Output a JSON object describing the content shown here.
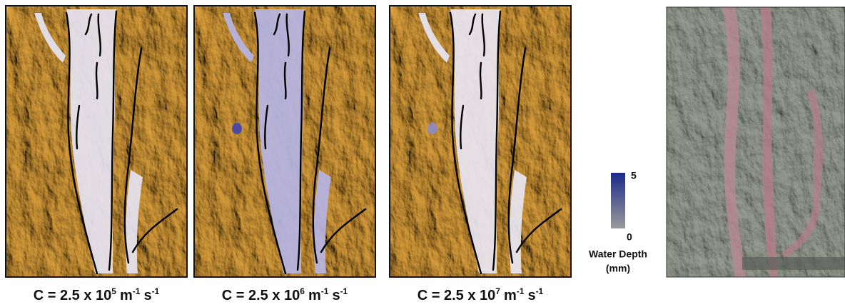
{
  "panels": [
    {
      "caption": [
        "C = 2.5 x 10",
        "5",
        "m",
        "-1",
        "s",
        "-1"
      ]
    },
    {
      "caption": [
        "C = 2.5 x 10",
        "6",
        "m",
        "-1",
        "s",
        "-1"
      ]
    },
    {
      "caption": [
        "C = 2.5 x 10",
        "7",
        "m",
        "-1",
        "s",
        "-1"
      ]
    }
  ],
  "colorbar": {
    "max_label": "5",
    "min_label": "0",
    "title": "Water Depth",
    "unit": "(mm)"
  }
}
